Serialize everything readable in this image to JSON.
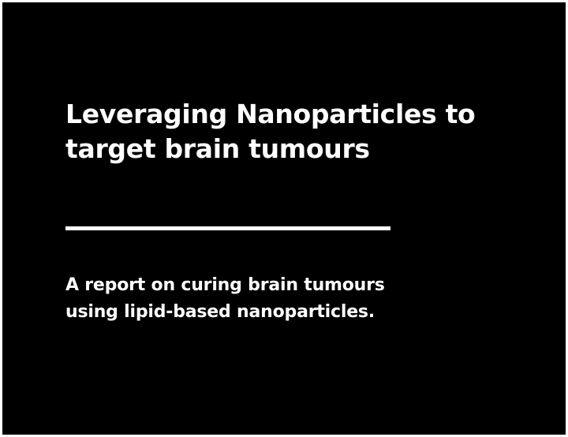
{
  "slide": {
    "background_color": "#000000",
    "text_color": "#ffffff",
    "title_lines": [
      "Leveraging Nanoparticles to",
      "target brain tumours"
    ],
    "subtitle_lines": [
      "A report on curing brain tumours",
      "using lipid-based nanoparticles."
    ]
  }
}
